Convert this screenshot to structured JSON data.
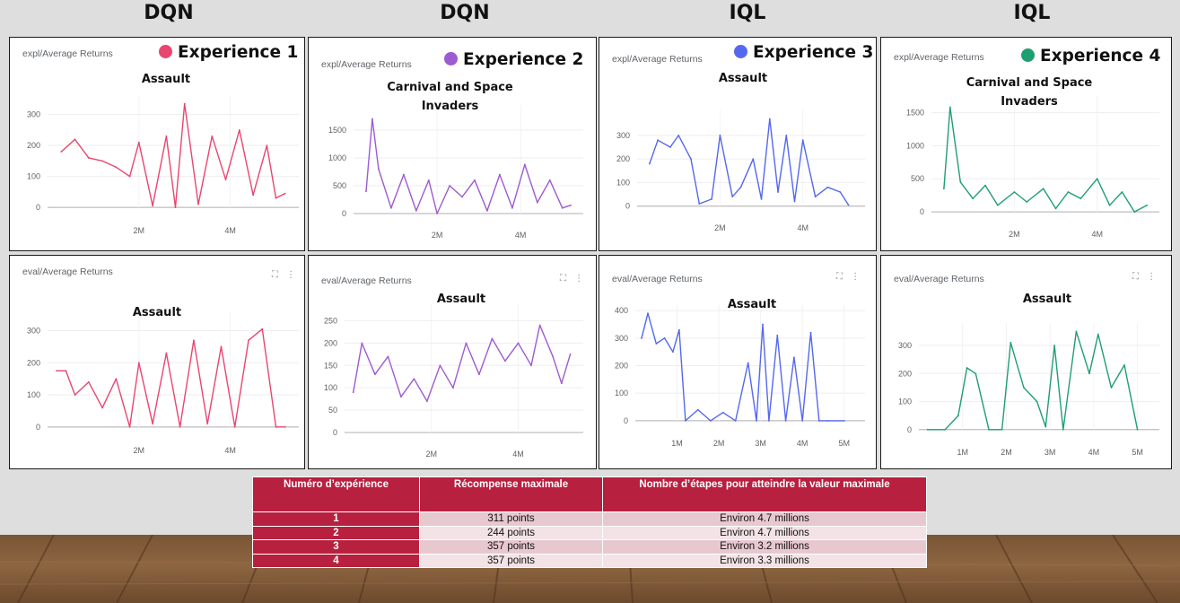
{
  "headers": [
    "DQN",
    "DQN",
    "IQL",
    "IQL"
  ],
  "palette": [
    "#e8466f",
    "#9d5bd2",
    "#5468ef",
    "#1f9e72"
  ],
  "panel_icons": "⛶ ⋮",
  "panels": [
    {
      "title": "expl/Average Returns",
      "experience": "Experience 1",
      "env": "Assault"
    },
    {
      "title": "expl/Average Returns",
      "experience": "Experience 2",
      "env": "Carnival and Space Invaders"
    },
    {
      "title": "expl/Average Returns",
      "experience": "Experience 3",
      "env": "Assault"
    },
    {
      "title": "expl/Average Returns",
      "experience": "Experience 4",
      "env": "Carnival and Space Invaders"
    },
    {
      "title": "eval/Average Returns",
      "env": "Assault"
    },
    {
      "title": "eval/Average Returns",
      "env": "Assault"
    },
    {
      "title": "eval/Average Returns",
      "env": "Assault"
    },
    {
      "title": "eval/Average Returns",
      "env": "Assault"
    }
  ],
  "chart_data": [
    {
      "type": "line",
      "title": "expl/Average Returns",
      "series": [
        {
          "name": "Experience 1",
          "x": [
            0.3,
            0.6,
            0.9,
            1.2,
            1.5,
            1.8,
            2.0,
            2.3,
            2.6,
            2.8,
            3.0,
            3.3,
            3.6,
            3.9,
            4.2,
            4.5,
            4.8,
            5.0,
            5.2
          ],
          "values": [
            180,
            220,
            160,
            150,
            130,
            100,
            210,
            5,
            230,
            0,
            335,
            10,
            230,
            90,
            250,
            40,
            200,
            30,
            45
          ]
        }
      ],
      "xticks": [
        "2M",
        "4M"
      ],
      "xlim": [
        0,
        5.5
      ],
      "yticks": [
        0,
        100,
        200,
        300
      ],
      "ylim": [
        -20,
        360
      ]
    },
    {
      "type": "line",
      "title": "expl/Average Returns",
      "series": [
        {
          "name": "Experience 2",
          "x": [
            0.3,
            0.45,
            0.6,
            0.9,
            1.2,
            1.5,
            1.8,
            2.0,
            2.3,
            2.6,
            2.9,
            3.2,
            3.5,
            3.8,
            4.1,
            4.4,
            4.7,
            5.0,
            5.2
          ],
          "values": [
            400,
            1700,
            800,
            100,
            700,
            50,
            600,
            0,
            500,
            300,
            600,
            50,
            700,
            100,
            880,
            200,
            600,
            100,
            150
          ]
        }
      ],
      "xticks": [
        "2M",
        "4M"
      ],
      "xlim": [
        0,
        5.5
      ],
      "yticks": [
        0,
        500,
        1000,
        1500
      ],
      "ylim": [
        -80,
        1950
      ]
    },
    {
      "type": "line",
      "title": "expl/Average Returns",
      "series": [
        {
          "name": "Experience 3",
          "x": [
            0.3,
            0.5,
            0.8,
            1.0,
            1.3,
            1.5,
            1.8,
            2.0,
            2.3,
            2.5,
            2.8,
            3.0,
            3.2,
            3.4,
            3.6,
            3.8,
            4.0,
            4.3,
            4.6,
            4.9,
            5.1
          ],
          "values": [
            180,
            280,
            250,
            300,
            200,
            10,
            30,
            300,
            40,
            80,
            200,
            30,
            370,
            60,
            300,
            20,
            280,
            40,
            80,
            60,
            5
          ]
        }
      ],
      "xticks": [
        "2M",
        "4M"
      ],
      "xlim": [
        0,
        5.5
      ],
      "yticks": [
        0,
        100,
        200,
        300
      ],
      "ylim": [
        -20,
        410
      ]
    },
    {
      "type": "line",
      "title": "expl/Average Returns",
      "series": [
        {
          "name": "Experience 4",
          "x": [
            0.3,
            0.45,
            0.7,
            1.0,
            1.3,
            1.6,
            2.0,
            2.3,
            2.7,
            3.0,
            3.3,
            3.6,
            4.0,
            4.3,
            4.6,
            4.9,
            5.2
          ],
          "values": [
            350,
            1580,
            450,
            200,
            400,
            100,
            300,
            150,
            350,
            50,
            300,
            200,
            500,
            100,
            300,
            0,
            100
          ]
        }
      ],
      "xticks": [
        "2M",
        "4M"
      ],
      "xlim": [
        0,
        5.5
      ],
      "yticks": [
        0,
        500,
        1000,
        1500
      ],
      "ylim": [
        -80,
        1750
      ]
    },
    {
      "type": "line",
      "title": "eval/Average Returns",
      "series": [
        {
          "name": "Experience 1",
          "x": [
            0.2,
            0.4,
            0.6,
            0.9,
            1.2,
            1.5,
            1.8,
            2.0,
            2.3,
            2.6,
            2.9,
            3.2,
            3.5,
            3.8,
            4.1,
            4.4,
            4.7,
            5.0,
            5.2
          ],
          "values": [
            175,
            175,
            100,
            140,
            60,
            150,
            0,
            200,
            10,
            230,
            0,
            270,
            10,
            250,
            0,
            270,
            305,
            0,
            0
          ]
        }
      ],
      "xticks": [
        "2M",
        "4M"
      ],
      "xlim": [
        0,
        5.5
      ],
      "yticks": [
        0,
        100,
        200,
        300
      ],
      "ylim": [
        -20,
        360
      ]
    },
    {
      "type": "line",
      "title": "eval/Average Returns",
      "series": [
        {
          "name": "Experience 2",
          "x": [
            0.2,
            0.4,
            0.7,
            1.0,
            1.3,
            1.6,
            1.9,
            2.2,
            2.5,
            2.8,
            3.1,
            3.4,
            3.7,
            4.0,
            4.3,
            4.5,
            4.8,
            5.0,
            5.2
          ],
          "values": [
            90,
            200,
            130,
            170,
            80,
            120,
            70,
            150,
            100,
            200,
            130,
            210,
            160,
            200,
            150,
            240,
            170,
            110,
            175
          ]
        }
      ],
      "xticks": [
        "2M",
        "4M"
      ],
      "xlim": [
        0,
        5.5
      ],
      "yticks": [
        0,
        50,
        100,
        150,
        200,
        250
      ],
      "ylim": [
        -10,
        285
      ]
    },
    {
      "type": "line",
      "title": "eval/Average Returns",
      "series": [
        {
          "name": "Experience 3",
          "x": [
            0.15,
            0.3,
            0.5,
            0.7,
            0.9,
            1.05,
            1.2,
            1.5,
            1.8,
            2.1,
            2.4,
            2.7,
            2.9,
            3.05,
            3.2,
            3.4,
            3.6,
            3.8,
            4.0,
            4.2,
            4.4,
            4.6,
            5.0
          ],
          "values": [
            300,
            390,
            280,
            300,
            250,
            330,
            0,
            40,
            0,
            30,
            0,
            210,
            0,
            350,
            0,
            310,
            0,
            230,
            0,
            320,
            0,
            0,
            0
          ]
        }
      ],
      "xticks": [
        "1M",
        "2M",
        "3M",
        "4M",
        "5M"
      ],
      "xlim": [
        0,
        5.5
      ],
      "yticks": [
        0,
        100,
        200,
        300,
        400
      ],
      "ylim": [
        -20,
        420
      ]
    },
    {
      "type": "line",
      "title": "eval/Average Returns",
      "series": [
        {
          "name": "Experience 4",
          "x": [
            0.2,
            0.6,
            0.9,
            1.1,
            1.3,
            1.6,
            1.9,
            2.1,
            2.4,
            2.7,
            2.9,
            3.1,
            3.3,
            3.6,
            3.9,
            4.1,
            4.4,
            4.7,
            5.0
          ],
          "values": [
            0,
            0,
            50,
            220,
            200,
            0,
            0,
            310,
            150,
            100,
            10,
            300,
            0,
            350,
            200,
            340,
            150,
            230,
            0
          ]
        }
      ],
      "xticks": [
        "1M",
        "2M",
        "3M",
        "4M",
        "5M"
      ],
      "xlim": [
        0,
        5.5
      ],
      "yticks": [
        0,
        100,
        200,
        300
      ],
      "ylim": [
        -20,
        380
      ]
    }
  ],
  "table": {
    "headers": [
      "Numéro d’expérience",
      "Récompense maximale",
      "Nombre d’étapes pour atteindre la valeur maximale"
    ],
    "rows": [
      [
        "1",
        "311 points",
        "Environ 4.7 millions"
      ],
      [
        "2",
        "244 points",
        "Environ 4.7 millions"
      ],
      [
        "3",
        "357 points",
        "Environ 3.2 millions"
      ],
      [
        "4",
        "357 points",
        "Environ 3.3 millions"
      ]
    ]
  }
}
